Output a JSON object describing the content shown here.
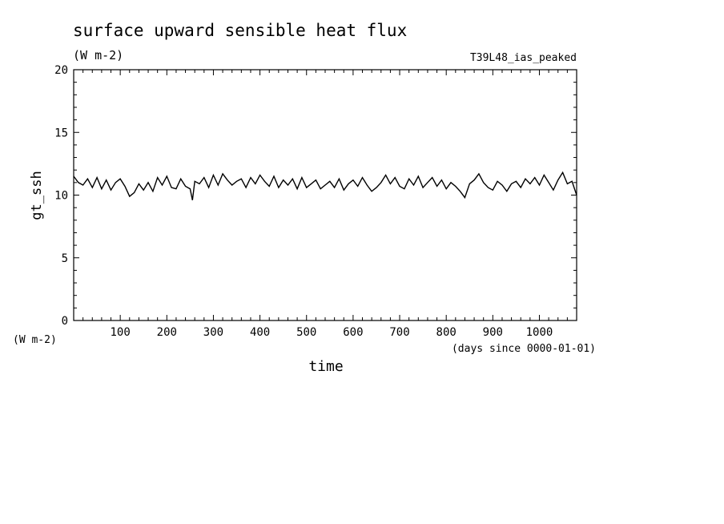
{
  "chart_data": {
    "type": "line",
    "title": "surface upward sensible heat flux",
    "units_label": "(W m-2)",
    "run_label": "T39L48_ias_peaked",
    "ylabel": "gt_ssh",
    "y_units_label": "(W m-2)",
    "xlabel": "time",
    "x_units_label": "(days since 0000-01-01)",
    "xlim": [
      0,
      1080
    ],
    "ylim": [
      0,
      20
    ],
    "xticks": [
      100,
      200,
      300,
      400,
      500,
      600,
      700,
      800,
      900,
      1000
    ],
    "yticks": [
      0,
      5,
      10,
      15,
      20
    ],
    "grid": false,
    "line_color": "#000000",
    "series": [
      {
        "x": [
          0,
          10,
          20,
          30,
          40,
          50,
          60,
          70,
          80,
          90,
          100,
          110,
          120,
          130,
          140,
          150,
          160,
          170,
          180,
          190,
          200,
          210,
          220,
          230,
          240,
          250,
          255,
          260,
          270,
          280,
          290,
          300,
          310,
          320,
          330,
          340,
          350,
          360,
          370,
          380,
          390,
          400,
          410,
          420,
          430,
          440,
          450,
          460,
          470,
          480,
          490,
          500,
          510,
          520,
          530,
          540,
          550,
          560,
          570,
          580,
          590,
          600,
          610,
          620,
          630,
          640,
          650,
          660,
          670,
          680,
          690,
          700,
          710,
          720,
          730,
          740,
          750,
          760,
          770,
          780,
          790,
          800,
          810,
          820,
          830,
          840,
          850,
          860,
          870,
          880,
          890,
          900,
          910,
          920,
          930,
          940,
          950,
          960,
          970,
          980,
          990,
          1000,
          1010,
          1020,
          1030,
          1040,
          1050,
          1060,
          1070,
          1080
        ],
        "y": [
          11.5,
          11.0,
          10.8,
          11.3,
          10.6,
          11.4,
          10.5,
          11.2,
          10.4,
          11.0,
          11.3,
          10.7,
          9.9,
          10.2,
          10.9,
          10.4,
          11.0,
          10.3,
          11.4,
          10.8,
          11.5,
          10.6,
          10.5,
          11.3,
          10.7,
          10.5,
          9.6,
          11.1,
          10.9,
          11.4,
          10.6,
          11.6,
          10.8,
          11.7,
          11.2,
          10.8,
          11.1,
          11.3,
          10.6,
          11.4,
          10.9,
          11.6,
          11.1,
          10.7,
          11.5,
          10.6,
          11.2,
          10.8,
          11.3,
          10.5,
          11.4,
          10.6,
          10.9,
          11.2,
          10.5,
          10.8,
          11.1,
          10.6,
          11.3,
          10.4,
          10.9,
          11.2,
          10.7,
          11.4,
          10.8,
          10.3,
          10.6,
          11.0,
          11.6,
          10.9,
          11.4,
          10.7,
          10.5,
          11.3,
          10.8,
          11.5,
          10.6,
          11.0,
          11.4,
          10.7,
          11.2,
          10.5,
          11.0,
          10.7,
          10.3,
          9.8,
          10.9,
          11.2,
          11.7,
          11.0,
          10.6,
          10.4,
          11.1,
          10.8,
          10.3,
          10.9,
          11.1,
          10.6,
          11.3,
          10.9,
          11.4,
          10.8,
          11.6,
          11.0,
          10.4,
          11.2,
          11.8,
          10.9,
          11.1,
          10.0
        ]
      }
    ]
  }
}
